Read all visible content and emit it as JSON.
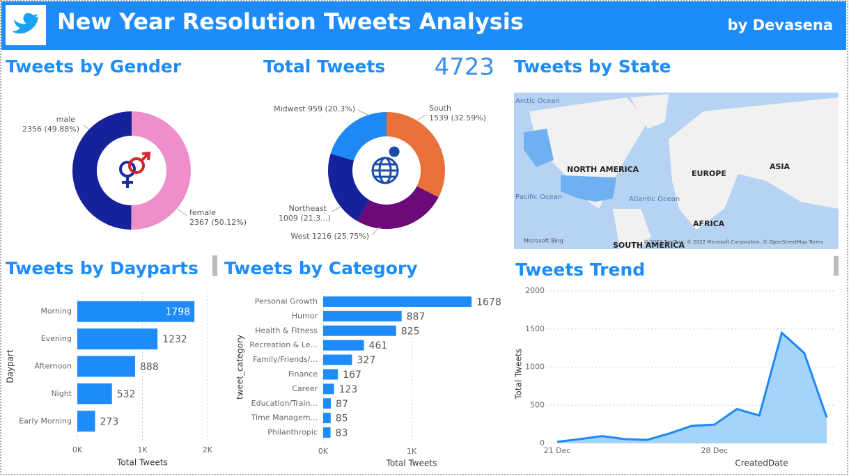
{
  "header": {
    "title": "New Year Resolution Tweets Analysis",
    "byline": "by Devasena"
  },
  "kpi": {
    "title": "Total Tweets",
    "value": 4723
  },
  "map": {
    "title": "Tweets by State",
    "labels": [
      "Arctic Ocean",
      "NORTH AMERICA",
      "EUROPE",
      "ASIA",
      "Pacific Ocean",
      "Atlantic Ocean",
      "AFRICA",
      "SOUTH AMERICA"
    ],
    "attribution": "Microsoft Bing",
    "copyright": "© 2022 TomTom, © 2022 Microsoft Corporation, © OpenStreetMap  Terms"
  },
  "chart_data": [
    {
      "type": "donut",
      "title": "Tweets by Gender",
      "categories": [
        "male",
        "female"
      ],
      "values": [
        2356,
        2367
      ],
      "value_labels": [
        "2356 (49.88%)",
        "2367 (50.12%)"
      ],
      "colors": [
        "#15229a",
        "#ee8fcb"
      ]
    },
    {
      "type": "donut",
      "categories": [
        "South",
        "West",
        "Northeast",
        "Midwest"
      ],
      "values": [
        1539,
        1216,
        1009,
        959
      ],
      "value_labels": [
        "1539 (32.59%)",
        "1216 (25.75%)",
        "1009 (21.3...)",
        "959 (20.3%)"
      ],
      "colors": [
        "#e8703a",
        "#6b0a78",
        "#15229a",
        "#1e88f5"
      ]
    },
    {
      "type": "hbar",
      "title": "Tweets by Dayparts",
      "categories": [
        "Morning",
        "Evening",
        "Afternoon",
        "Night",
        "Early Morning"
      ],
      "values": [
        1798,
        1232,
        888,
        532,
        273
      ],
      "color": "#1e8cf8",
      "xlim": [
        0,
        2000
      ],
      "xticks": [
        {
          "value": 0,
          "label": "0K"
        },
        {
          "value": 1000,
          "label": "1K"
        },
        {
          "value": 2000,
          "label": "2K"
        }
      ],
      "xlabel": "Total Tweets",
      "ylabel": "Daypart",
      "grid": true
    },
    {
      "type": "hbar",
      "title": "Tweets by Category",
      "categories": [
        "Personal Growth",
        "Humor",
        "Health & Fitness",
        "Recreation & Le...",
        "Family/Friends/...",
        "Finance",
        "Career",
        "Education/Train...",
        "Time Managem...",
        "Philanthropic"
      ],
      "values": [
        1678,
        887,
        825,
        461,
        327,
        167,
        123,
        87,
        85,
        83
      ],
      "color": "#1e8cf8",
      "xlim": [
        0,
        2000
      ],
      "xticks": [
        {
          "value": 0,
          "label": "0K"
        },
        {
          "value": 1000,
          "label": "1K"
        }
      ],
      "xlabel": "Total Tweets",
      "ylabel": "tweet_category",
      "grid": true
    },
    {
      "type": "area",
      "title": "Tweets Trend",
      "categories": [
        "21 Dec",
        null,
        null,
        null,
        null,
        null,
        null,
        "28 Dec",
        null,
        null,
        null,
        null,
        null
      ],
      "values": [
        20,
        55,
        95,
        55,
        45,
        130,
        230,
        245,
        450,
        365,
        1450,
        1185,
        340
      ],
      "color": "#1e88f5",
      "fill": "#a5d3fb",
      "ylim": [
        0,
        2000
      ],
      "yticks": [
        0,
        500,
        1000,
        1500,
        2000
      ],
      "xlabel": "CreatedDate",
      "ylabel": "Total Tweets",
      "grid": true
    }
  ]
}
